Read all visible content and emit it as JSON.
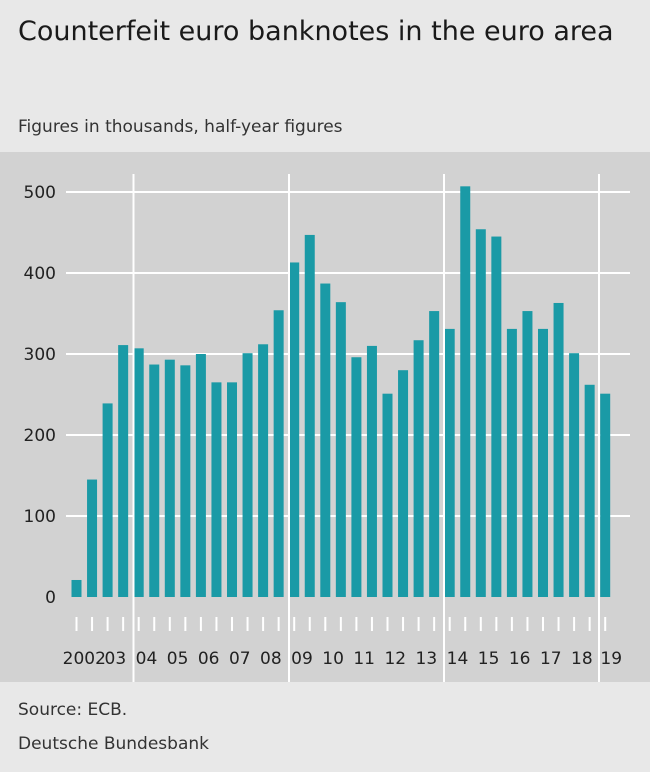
{
  "title": "Counterfeit euro banknotes in the euro area",
  "subtitle": "Figures in thousands, half-year figures",
  "source": "Source: ECB.",
  "publisher": "Deutsche Bundesbank",
  "colors": {
    "bar": "#1a9aa6",
    "plot_background": "#d2d2d2",
    "gridline": "#ffffff",
    "page_background": "#e8e8e8"
  },
  "chart_data": {
    "type": "bar",
    "title": "Counterfeit euro banknotes in the euro area",
    "subtitle": "Figures in thousands, half-year figures",
    "ylim": [
      0,
      520
    ],
    "yticks": [
      0,
      100,
      200,
      300,
      400,
      500
    ],
    "grid": true,
    "year_labels": [
      "2002",
      "03",
      "04",
      "05",
      "06",
      "07",
      "08",
      "09",
      "10",
      "11",
      "12",
      "13",
      "14",
      "15",
      "16",
      "17",
      "18",
      "19"
    ],
    "year_separators_after_label": [
      "2002",
      "08",
      "13",
      "18"
    ],
    "categories": [
      "2002 H1",
      "2002 H2",
      "2003 H1",
      "2003 H2",
      "2004 H1",
      "2004 H2",
      "2005 H1",
      "2005 H2",
      "2006 H1",
      "2006 H2",
      "2007 H1",
      "2007 H2",
      "2008 H1",
      "2008 H2",
      "2009 H1",
      "2009 H2",
      "2010 H1",
      "2010 H2",
      "2011 H1",
      "2011 H2",
      "2012 H1",
      "2012 H2",
      "2013 H1",
      "2013 H2",
      "2014 H1",
      "2014 H2",
      "2015 H1",
      "2015 H2",
      "2016 H1",
      "2016 H2",
      "2017 H1",
      "2017 H2",
      "2018 H1",
      "2018 H2",
      "2019 H1"
    ],
    "values": [
      21,
      145,
      239,
      311,
      307,
      287,
      293,
      286,
      300,
      265,
      265,
      301,
      312,
      354,
      413,
      447,
      387,
      364,
      296,
      310,
      251,
      280,
      317,
      353,
      331,
      507,
      454,
      445,
      331,
      353,
      331,
      363,
      301,
      262,
      251
    ]
  }
}
